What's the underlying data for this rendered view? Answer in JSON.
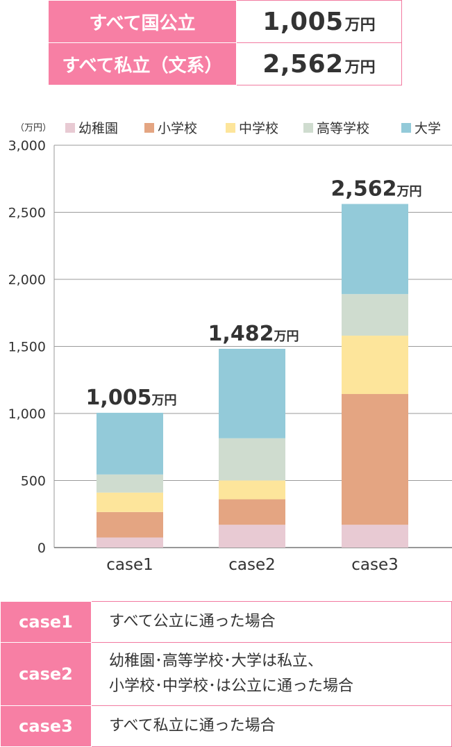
{
  "summary": [
    {
      "label": "すべて国公立",
      "value": "1,005",
      "unit": "万円"
    },
    {
      "label": "すべて私立（文系）",
      "value": "2,562",
      "unit": "万円"
    }
  ],
  "colors": {
    "accent": "#f77fa4",
    "kindergarten": "#e8cad3",
    "elementary": "#e4a582",
    "junior_high": "#fde59b",
    "high_school": "#cfdccf",
    "university": "#93cad9"
  },
  "chart_data": {
    "type": "bar",
    "stacked": true,
    "ylabel": "（万円）",
    "ylim": [
      0,
      3000
    ],
    "yticks": [
      "0",
      "500",
      "1,000",
      "1,500",
      "2,000",
      "2,500",
      "3,000"
    ],
    "ytick_values": [
      0,
      500,
      1000,
      1500,
      2000,
      2500,
      3000
    ],
    "categories": [
      "case1",
      "case2",
      "case3"
    ],
    "series": [
      {
        "name": "幼稚園",
        "color": "#e8cad3",
        "values": [
          75,
          170,
          170
        ]
      },
      {
        "name": "小学校",
        "color": "#e4a582",
        "values": [
          190,
          190,
          975
        ]
      },
      {
        "name": "中学校",
        "color": "#fde59b",
        "values": [
          145,
          140,
          435
        ]
      },
      {
        "name": "高等学校",
        "color": "#cfdccf",
        "values": [
          135,
          315,
          310
        ]
      },
      {
        "name": "大学",
        "color": "#93cad9",
        "values": [
          460,
          667,
          672
        ]
      }
    ],
    "totals": [
      1005,
      1482,
      2562
    ],
    "total_labels": [
      "1,005",
      "1,482",
      "2,562"
    ],
    "total_unit": "万円",
    "legend_position": "top",
    "grid": true
  },
  "cases": [
    {
      "label": "case1",
      "lines": [
        "すべて公立に通った場合"
      ]
    },
    {
      "label": "case2",
      "lines": [
        "幼稚園･高等学校･大学は私立、",
        "小学校･中学校･は公立に通った場合"
      ]
    },
    {
      "label": "case3",
      "lines": [
        "すべて私立に通った場合"
      ]
    }
  ]
}
